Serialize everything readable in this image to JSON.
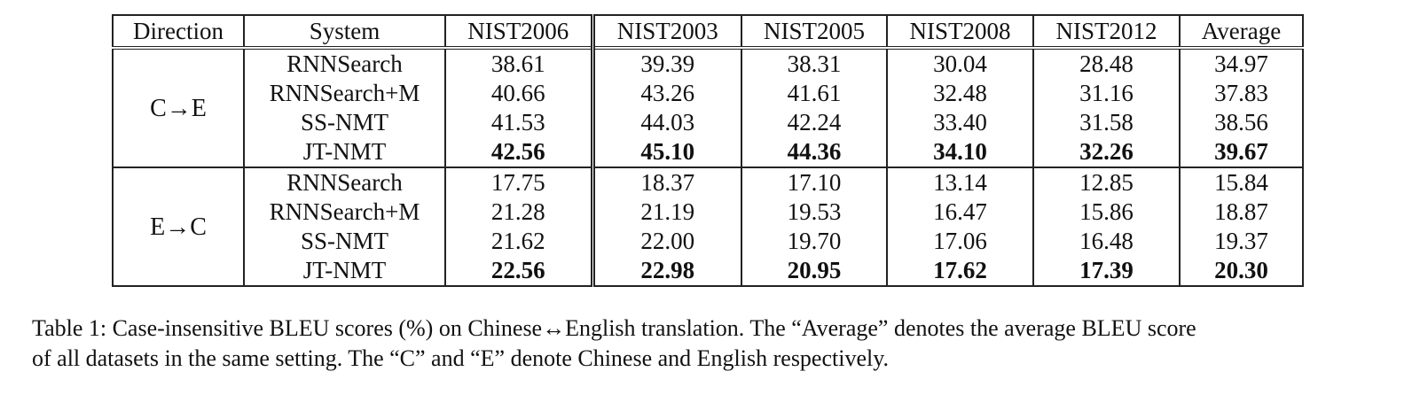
{
  "table": {
    "headers": [
      "Direction",
      "System",
      "NIST2006",
      "NIST2003",
      "NIST2005",
      "NIST2008",
      "NIST2012",
      "Average"
    ],
    "groups": [
      {
        "direction": "C→E",
        "rows": [
          {
            "system": "RNNSearch",
            "values": [
              "38.61",
              "39.39",
              "38.31",
              "30.04",
              "28.48",
              "34.97"
            ]
          },
          {
            "system": "RNNSearch+M",
            "values": [
              "40.66",
              "43.26",
              "41.61",
              "32.48",
              "31.16",
              "37.83"
            ]
          },
          {
            "system": "SS-NMT",
            "values": [
              "41.53",
              "44.03",
              "42.24",
              "33.40",
              "31.58",
              "38.56"
            ]
          },
          {
            "system": "JT-NMT",
            "values": [
              "42.56",
              "45.10",
              "44.36",
              "34.10",
              "32.26",
              "39.67"
            ],
            "bold": true
          }
        ]
      },
      {
        "direction": "E→C",
        "rows": [
          {
            "system": "RNNSearch",
            "values": [
              "17.75",
              "18.37",
              "17.10",
              "13.14",
              "12.85",
              "15.84"
            ]
          },
          {
            "system": "RNNSearch+M",
            "values": [
              "21.28",
              "21.19",
              "19.53",
              "16.47",
              "15.86",
              "18.87"
            ]
          },
          {
            "system": "SS-NMT",
            "values": [
              "21.62",
              "22.00",
              "19.70",
              "17.06",
              "16.48",
              "19.37"
            ]
          },
          {
            "system": "JT-NMT",
            "values": [
              "22.56",
              "22.98",
              "20.95",
              "17.62",
              "17.39",
              "20.30"
            ],
            "bold": true
          }
        ]
      }
    ]
  },
  "caption": {
    "line1": "Table 1: Case-insensitive BLEU scores (%) on Chinese↔English translation. The “Average” denotes the average BLEU score",
    "line2": "of all datasets in the same setting. The “C” and “E” denote Chinese and English respectively."
  }
}
